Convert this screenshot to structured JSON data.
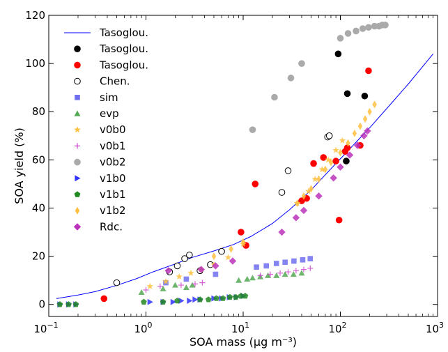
{
  "chart_data": {
    "type": "scatter",
    "xlabel": "SOA mass (µg m⁻³)",
    "ylabel": "SOA yield (%)",
    "xscale": "log",
    "xlim": [
      0.1,
      1000
    ],
    "ylim": [
      -5,
      120
    ],
    "grid": false,
    "legend_position": "top-left",
    "x_ticks": [
      {
        "value": 0.1,
        "base": "10",
        "exp": "−1"
      },
      {
        "value": 1,
        "base": "10",
        "exp": "0"
      },
      {
        "value": 10,
        "base": "10",
        "exp": "1"
      },
      {
        "value": 100,
        "base": "10",
        "exp": "2"
      },
      {
        "value": 1000,
        "base": "10",
        "exp": "3"
      }
    ],
    "y_ticks": [
      0,
      20,
      40,
      60,
      80,
      100,
      120
    ],
    "series": [
      {
        "name": "Tasoglou.",
        "kind": "line",
        "color": "#0000ff",
        "marker": "line",
        "x": [
          0.12,
          0.2,
          0.3,
          0.5,
          0.8,
          1.2,
          2,
          3,
          5,
          8,
          12,
          20,
          30,
          50,
          80,
          120,
          200,
          300,
          500,
          900
        ],
        "y": [
          2.4,
          3.9,
          5.3,
          7.9,
          10.7,
          13.6,
          16.8,
          19.5,
          22.2,
          24.9,
          28.2,
          33.6,
          39.3,
          47.5,
          56.3,
          63.8,
          73.3,
          81.3,
          91.5,
          104.0
        ]
      },
      {
        "name": "Tasoglou.",
        "kind": "scatter",
        "color": "#000000",
        "marker": "circle",
        "x": [
          95,
          118,
          178,
          115
        ],
        "y": [
          104,
          87.5,
          86.5,
          59.5
        ]
      },
      {
        "name": "Tasoglou.",
        "kind": "scatter",
        "color": "#ff0000",
        "marker": "circle",
        "x": [
          0.37,
          9.5,
          10.7,
          13.3,
          40,
          45,
          53,
          67,
          90,
          97,
          112,
          118,
          160,
          195
        ],
        "y": [
          2.4,
          30,
          24.5,
          50,
          43,
          44,
          58.5,
          61,
          59.5,
          35,
          63.5,
          65,
          66,
          97
        ]
      },
      {
        "name": "Chen.",
        "kind": "scatter",
        "color": "#000000",
        "marker": "open-circle",
        "x": [
          0.5,
          1.75,
          2.1,
          2.5,
          2.8,
          3.6,
          4.6,
          6,
          25,
          29,
          74,
          77
        ],
        "y": [
          9,
          13.5,
          16,
          19,
          20.5,
          14,
          16.5,
          22,
          46.5,
          55.5,
          69.5,
          70
        ]
      },
      {
        "name": "sim",
        "kind": "scatter",
        "color": "#6f6ff0",
        "marker": "square",
        "x": [
          1.6,
          2.6,
          5.2,
          13.7,
          17.3,
          22,
          27,
          33.3,
          41,
          49
        ],
        "y": [
          9,
          10.5,
          12.5,
          15.5,
          16,
          17,
          17.5,
          18,
          18.5,
          19
        ]
      },
      {
        "name": "evp",
        "kind": "scatter",
        "color": "#55aa55",
        "marker": "triangle",
        "x": [
          0.9,
          1.5,
          2,
          2.6,
          3,
          9,
          11,
          12.5,
          15,
          18,
          22,
          27,
          33,
          40
        ],
        "y": [
          5,
          6.5,
          8,
          7,
          8,
          10,
          10.5,
          11,
          11.5,
          12,
          12,
          12.5,
          12.5,
          13
        ]
      },
      {
        "name": "v0b0",
        "kind": "scatter",
        "color": "#ffc040",
        "marker": "star",
        "x": [
          1.1,
          1.6,
          2.2,
          2.9,
          3.7,
          5,
          7,
          10,
          36,
          47,
          55,
          65,
          75,
          90,
          105
        ],
        "y": [
          7.5,
          9.5,
          11.5,
          13,
          14.5,
          16.5,
          19.5,
          25,
          42,
          47,
          52,
          56,
          60,
          64,
          68
        ]
      },
      {
        "name": "v0b1",
        "kind": "scatter",
        "color": "#cc44cc",
        "marker": "plus",
        "x": [
          1,
          1.4,
          2.3,
          3.2,
          3.8,
          15,
          19,
          24,
          29,
          35,
          42,
          49
        ],
        "y": [
          6,
          7.5,
          8,
          8.5,
          9,
          12,
          12.5,
          13,
          13.5,
          14,
          14.5,
          15
        ]
      },
      {
        "name": "v0b2",
        "kind": "scatter",
        "color": "#aaaaaa",
        "marker": "circle",
        "x": [
          12.5,
          21,
          31,
          40,
          100,
          120,
          145,
          170,
          195,
          225,
          250,
          270,
          290
        ],
        "y": [
          72.5,
          86,
          94,
          100,
          110.5,
          112.5,
          113.5,
          114.5,
          115,
          115.5,
          115.5,
          116,
          116
        ]
      },
      {
        "name": "v1b0",
        "kind": "scatter",
        "color": "#3333ff",
        "marker": "triangle-right",
        "x": [
          0.13,
          0.16,
          0.19,
          1.1,
          1.5,
          1.9,
          2.3,
          2.8,
          3.2,
          3.6,
          5,
          6,
          7.2,
          8.5,
          10
        ],
        "y": [
          0,
          0,
          0,
          1,
          1,
          1,
          1.5,
          1.5,
          2,
          2,
          2.5,
          2.5,
          3,
          3,
          3.5
        ]
      },
      {
        "name": "v1b1",
        "kind": "scatter",
        "color": "#228822",
        "marker": "pentagon",
        "x": [
          0.13,
          0.16,
          0.19,
          0.95,
          1.5,
          2.1,
          3.6,
          4.4,
          5.3,
          6.2,
          7.3,
          8.4,
          9.5,
          10.5
        ],
        "y": [
          0,
          0,
          0,
          1,
          1,
          1.5,
          2,
          2,
          2.5,
          2.5,
          3,
          3,
          3.5,
          3.5
        ]
      },
      {
        "name": "v1b2",
        "kind": "scatter",
        "color": "#ffc040",
        "marker": "thin-diamond",
        "x": [
          5,
          7.5,
          10,
          36,
          42,
          50,
          60,
          70,
          80,
          100,
          120,
          140,
          160,
          180,
          200,
          225
        ],
        "y": [
          20,
          23,
          26,
          42,
          45,
          48,
          52,
          56,
          59,
          63,
          67,
          71,
          74,
          77,
          80,
          83
        ]
      },
      {
        "name": "Rdc.",
        "kind": "scatter",
        "color": "#bb33bb",
        "marker": "diamond",
        "x": [
          1.7,
          3.7,
          5.2,
          7.8,
          25,
          35,
          42,
          60,
          85,
          100,
          125,
          150,
          175,
          190
        ],
        "y": [
          14,
          14.5,
          16,
          18,
          30,
          36,
          39,
          45,
          52.5,
          57,
          62,
          66,
          70,
          72
        ]
      }
    ]
  }
}
